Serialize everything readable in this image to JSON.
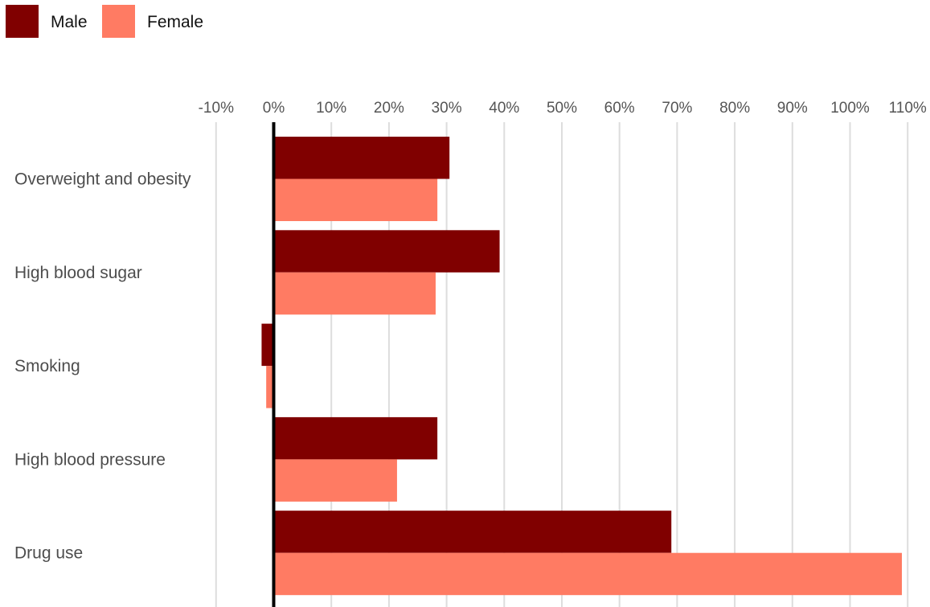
{
  "chart_data": {
    "type": "bar",
    "orientation": "horizontal",
    "categories": [
      "Overweight and obesity",
      "High blood sugar",
      "Smoking",
      "High blood pressure",
      "Drug use"
    ],
    "series": [
      {
        "name": "Male",
        "color": "#800000",
        "values": [
          30.5,
          39.2,
          -2.1,
          28.4,
          69.0
        ]
      },
      {
        "name": "Female",
        "color": "#ff7b63",
        "values": [
          28.4,
          28.1,
          -1.3,
          21.4,
          109.0
        ]
      }
    ],
    "xlim": [
      -10,
      110
    ],
    "xticks": [
      -10,
      0,
      10,
      20,
      30,
      40,
      50,
      60,
      70,
      80,
      90,
      100,
      110
    ],
    "tick_suffix": "%",
    "grid": true,
    "legend_position": "top-left"
  }
}
